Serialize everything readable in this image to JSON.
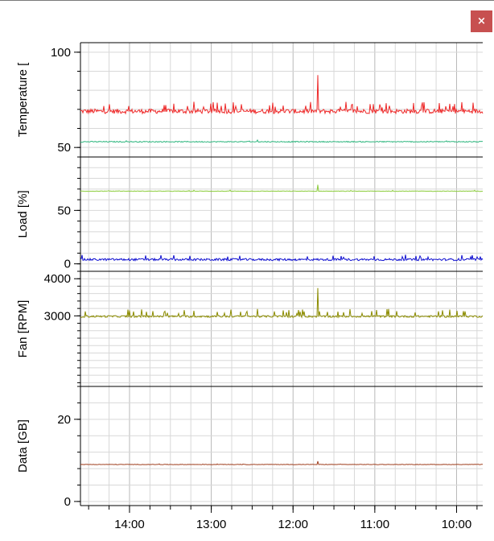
{
  "window": {
    "close_label": "×"
  },
  "colors": {
    "grid": "#d8d8d8",
    "axis": "#000000",
    "temperature_1": "#ee2a2a",
    "temperature_2": "#2fb67f",
    "load_1": "#8ccc3c",
    "load_2": "#1010d0",
    "fan": "#8c8c00",
    "data": "#a04020",
    "close_button": "#c75050"
  },
  "chart_data": [
    {
      "type": "line",
      "ylabel": "Temperature [",
      "ylim": [
        45,
        105
      ],
      "yticks": [
        50,
        100
      ],
      "series": [
        {
          "color": "#ee2a2a",
          "base": 69,
          "noise": 1.2,
          "spike_height": 5,
          "spike_prob": 0.08,
          "big_spike": {
            "x": 11.7,
            "value": 88
          }
        },
        {
          "color": "#2fb67f",
          "base": 53,
          "noise": 0.25,
          "spike_height": 1,
          "spike_prob": 0.01
        }
      ]
    },
    {
      "type": "line",
      "ylabel": "Load [%]",
      "ylim": [
        -7,
        100
      ],
      "yticks": [
        0,
        50
      ],
      "series": [
        {
          "color": "#8ccc3c",
          "base": 68,
          "noise": 0.2,
          "spike_height": 1,
          "spike_prob": 0.01,
          "big_spike": {
            "x": 11.7,
            "value": 74
          }
        },
        {
          "color": "#1010d0",
          "base": 4,
          "noise": 1.0,
          "spike_height": 5,
          "spike_prob": 0.05
        }
      ]
    },
    {
      "type": "line",
      "ylabel": "Fan [RPM]",
      "ylim": [
        1100,
        4200
      ],
      "yticks": [
        3000,
        4000
      ],
      "series": [
        {
          "color": "#8c8c00",
          "base": 2985,
          "noise": 25,
          "spike_height": 200,
          "spike_prob": 0.08,
          "big_spike": {
            "x": 11.7,
            "value": 3750
          }
        }
      ]
    },
    {
      "type": "line",
      "ylabel": "Data [GB]",
      "ylim": [
        -1,
        28
      ],
      "yticks": [
        0,
        20
      ],
      "series": [
        {
          "color": "#a04020",
          "base": 9,
          "noise": 0.05,
          "spike_height": 0.2,
          "spike_prob": 0.005,
          "big_spike": {
            "x": 11.7,
            "value": 9.8
          }
        }
      ]
    }
  ],
  "x_axis": {
    "xlim_hours": [
      14.6,
      9.68
    ],
    "ticks": [
      {
        "value": 14,
        "label": "14:00"
      },
      {
        "value": 13,
        "label": "13:00"
      },
      {
        "value": 12,
        "label": "12:00"
      },
      {
        "value": 11,
        "label": "11:00"
      },
      {
        "value": 10,
        "label": "10:00"
      }
    ]
  }
}
